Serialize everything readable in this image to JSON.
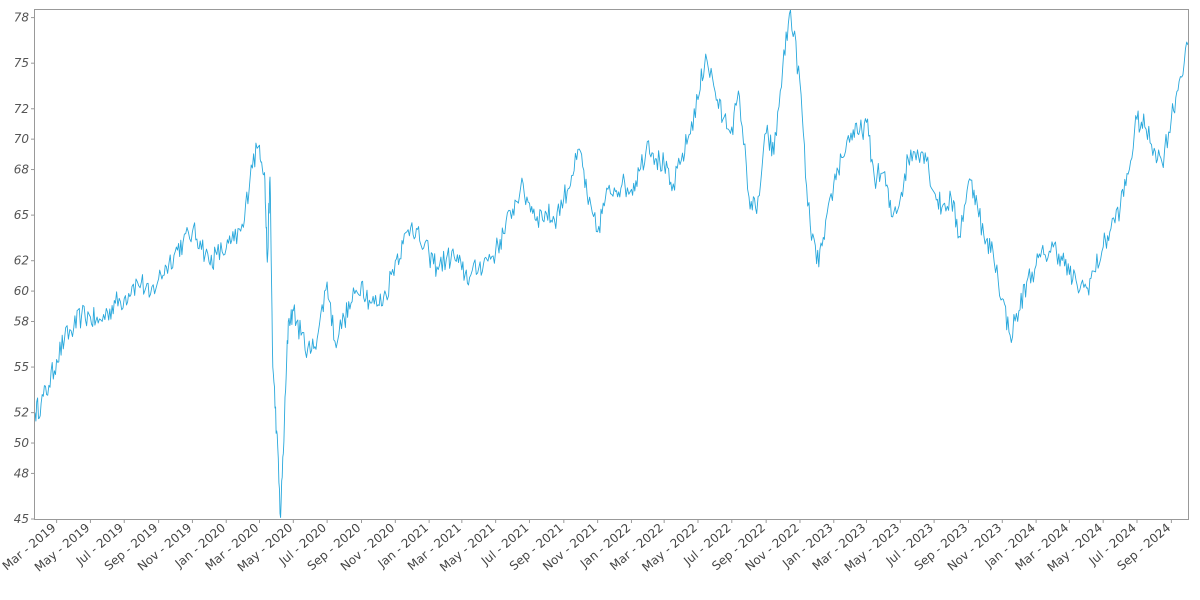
{
  "chart_data": {
    "type": "line",
    "title": "",
    "xlabel": "",
    "ylabel": "",
    "grid": false,
    "ylim": [
      45,
      78.5
    ],
    "xlim": [
      "2019-01-21",
      "2024-10-01"
    ],
    "y_ticks": [
      45,
      48,
      50,
      52,
      55,
      58,
      60,
      62,
      65,
      68,
      70,
      72,
      75,
      78
    ],
    "x_tick_labels": [
      "Mar - 2019",
      "May - 2019",
      "Jul - 2019",
      "Sep - 2019",
      "Nov - 2019",
      "Jan - 2020",
      "Mar - 2020",
      "May - 2020",
      "Jul - 2020",
      "Sep - 2020",
      "Nov - 2020",
      "Jan - 2021",
      "Mar - 2021",
      "May - 2021",
      "Jul - 2021",
      "Sep - 2021",
      "Nov - 2021",
      "Jan - 2022",
      "Mar - 2022",
      "May - 2022",
      "Jul - 2022",
      "Sep - 2022",
      "Nov - 2022",
      "Jan - 2023",
      "Mar - 2023",
      "May - 2023",
      "Jul - 2023",
      "Sep - 2023",
      "Nov - 2023",
      "Jan - 2024",
      "Mar - 2024",
      "May - 2024",
      "Jul - 2024",
      "Sep - 2024"
    ],
    "x_tick_dates": [
      "2019-03-01",
      "2019-05-01",
      "2019-07-01",
      "2019-09-01",
      "2019-11-01",
      "2020-01-01",
      "2020-03-01",
      "2020-05-01",
      "2020-07-01",
      "2020-09-01",
      "2020-11-01",
      "2021-01-01",
      "2021-03-01",
      "2021-05-01",
      "2021-07-01",
      "2021-09-01",
      "2021-11-01",
      "2022-01-01",
      "2022-03-01",
      "2022-05-01",
      "2022-07-01",
      "2022-09-01",
      "2022-11-01",
      "2023-01-01",
      "2023-03-01",
      "2023-05-01",
      "2023-07-01",
      "2023-09-01",
      "2023-11-01",
      "2024-01-01",
      "2024-03-01",
      "2024-05-01",
      "2024-07-01",
      "2024-09-01"
    ],
    "series": [
      {
        "color": "#29a8dc",
        "x": [
          "2019-01-21",
          "2019-02-01",
          "2019-02-15",
          "2019-03-01",
          "2019-03-15",
          "2019-04-01",
          "2019-04-15",
          "2019-05-01",
          "2019-05-15",
          "2019-06-01",
          "2019-06-15",
          "2019-07-01",
          "2019-07-15",
          "2019-08-01",
          "2019-08-15",
          "2019-09-01",
          "2019-09-15",
          "2019-10-01",
          "2019-10-15",
          "2019-11-01",
          "2019-11-15",
          "2019-12-01",
          "2019-12-15",
          "2020-01-01",
          "2020-01-15",
          "2020-02-01",
          "2020-02-15",
          "2020-03-01",
          "2020-03-10",
          "2020-03-15",
          "2020-03-20",
          "2020-03-25",
          "2020-04-01",
          "2020-04-08",
          "2020-04-15",
          "2020-04-22",
          "2020-05-01",
          "2020-05-15",
          "2020-06-01",
          "2020-06-15",
          "2020-07-01",
          "2020-07-15",
          "2020-08-01",
          "2020-08-15",
          "2020-09-01",
          "2020-09-15",
          "2020-10-01",
          "2020-10-15",
          "2020-11-01",
          "2020-11-15",
          "2020-12-01",
          "2020-12-15",
          "2021-01-01",
          "2021-01-15",
          "2021-02-01",
          "2021-02-15",
          "2021-03-01",
          "2021-03-15",
          "2021-04-01",
          "2021-04-15",
          "2021-05-01",
          "2021-05-15",
          "2021-06-01",
          "2021-06-15",
          "2021-07-01",
          "2021-07-15",
          "2021-08-01",
          "2021-08-15",
          "2021-09-01",
          "2021-09-15",
          "2021-10-01",
          "2021-10-15",
          "2021-11-01",
          "2021-11-15",
          "2021-12-01",
          "2021-12-15",
          "2022-01-01",
          "2022-01-15",
          "2022-02-01",
          "2022-02-15",
          "2022-03-01",
          "2022-03-15",
          "2022-04-01",
          "2022-04-15",
          "2022-05-01",
          "2022-05-15",
          "2022-06-01",
          "2022-06-15",
          "2022-07-01",
          "2022-07-15",
          "2022-08-01",
          "2022-08-15",
          "2022-09-01",
          "2022-09-15",
          "2022-10-01",
          "2022-10-15",
          "2022-11-01",
          "2022-11-15",
          "2022-12-01",
          "2022-12-15",
          "2023-01-01",
          "2023-01-15",
          "2023-02-01",
          "2023-02-15",
          "2023-03-01",
          "2023-03-15",
          "2023-04-01",
          "2023-04-15",
          "2023-05-01",
          "2023-05-15",
          "2023-06-01",
          "2023-06-15",
          "2023-07-01",
          "2023-07-15",
          "2023-08-01",
          "2023-08-15",
          "2023-09-01",
          "2023-09-15",
          "2023-10-01",
          "2023-10-15",
          "2023-11-01",
          "2023-11-15",
          "2023-12-01",
          "2023-12-15",
          "2024-01-01",
          "2024-01-15",
          "2024-02-01",
          "2024-02-15",
          "2024-03-01",
          "2024-03-15",
          "2024-04-01",
          "2024-04-15",
          "2024-05-01",
          "2024-05-15",
          "2024-06-01",
          "2024-06-15",
          "2024-07-01",
          "2024-07-15",
          "2024-08-01",
          "2024-08-15",
          "2024-09-01",
          "2024-09-15",
          "2024-10-01"
        ],
        "y": [
          52.0,
          52.6,
          53.8,
          55.5,
          56.8,
          57.6,
          58.4,
          58.3,
          57.9,
          58.6,
          59.2,
          59.5,
          60.3,
          60.6,
          59.6,
          60.8,
          61.6,
          62.6,
          63.2,
          63.9,
          63.3,
          61.9,
          62.4,
          62.8,
          63.3,
          64.2,
          68.3,
          69.6,
          67.8,
          61.9,
          67.5,
          55.0,
          50.8,
          45.1,
          51.4,
          58.0,
          58.7,
          57.1,
          55.9,
          57.3,
          60.6,
          56.7,
          58.2,
          59.3,
          60.6,
          59.4,
          59.1,
          59.8,
          62.0,
          63.1,
          64.5,
          63.3,
          62.4,
          61.6,
          62.1,
          62.3,
          61.4,
          60.9,
          61.6,
          62.1,
          62.6,
          63.8,
          65.4,
          66.8,
          65.8,
          64.9,
          65.1,
          64.7,
          66.1,
          67.6,
          69.2,
          65.7,
          63.9,
          66.1,
          66.8,
          67.0,
          66.7,
          67.9,
          69.9,
          68.7,
          68.3,
          66.6,
          68.6,
          70.3,
          72.6,
          75.6,
          73.1,
          71.3,
          70.8,
          72.8,
          66.2,
          65.1,
          70.4,
          69.0,
          74.8,
          78.5,
          73.7,
          65.6,
          61.8,
          63.4,
          67.1,
          68.8,
          70.4,
          70.3,
          71.1,
          67.5,
          67.8,
          64.9,
          66.1,
          68.7,
          69.3,
          69.1,
          66.5,
          65.5,
          66.1,
          63.6,
          67.2,
          66.3,
          63.1,
          62.7,
          59.5,
          57.1,
          58.7,
          60.6,
          61.7,
          62.4,
          62.9,
          62.3,
          61.1,
          60.4,
          60.2,
          61.3,
          62.9,
          64.1,
          65.6,
          67.7,
          71.3,
          70.8,
          69.4,
          68.5,
          71.4,
          73.8,
          76.2
        ]
      }
    ]
  }
}
